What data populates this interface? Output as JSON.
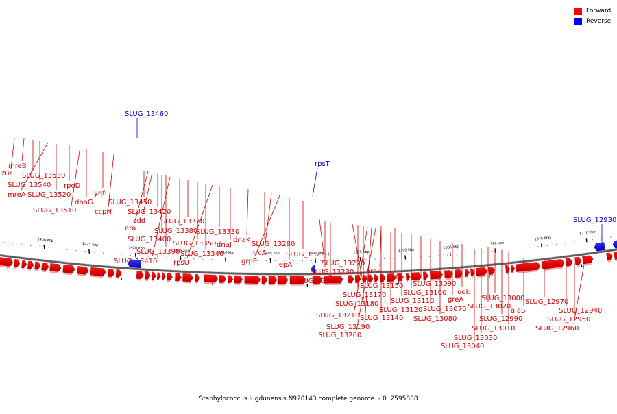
{
  "legend": {
    "forward": {
      "label": "Forward",
      "color": "#ff0000"
    },
    "reverse": {
      "label": "Reverse",
      "color": "#0000ff"
    }
  },
  "caption": "Staphylococcus lugdunensis N920143 complete genome. - 0..2595888",
  "ticks": [
    "1430 kbp",
    "1425 kbp",
    "1420 kbp",
    "1415 kbp",
    "1410 kbp",
    "1405 kbp",
    "1400 kbp",
    "1395 kbp",
    "1390 kbp",
    "1385 kbp",
    "1380 kbp",
    "1375 kbp",
    "1370 kbp"
  ],
  "forward_genes": [
    "zur",
    "mreB",
    "SLUG_13530",
    "SLUG_13540",
    "mreA",
    "SLUG_13520",
    "rpoD",
    "SLUG_13510",
    "dnaG",
    "yqfL",
    "ccpN",
    "SLUG_13450",
    "era",
    "cdd",
    "SLUG_13420",
    "SLUG_13400",
    "SLUG_13390",
    "SLUG_13410",
    "SLUG_13380",
    "SLUG_13370",
    "SLUG_13350",
    "SLUG_13340",
    "rpsU",
    "SLUG_13330",
    "dnaJ",
    "dnaK",
    "SLUG_13280",
    "hrcA",
    "grpE",
    "lepA",
    "SLUG_13250",
    "SLUG_13220",
    "SLUG_13230",
    "SLUG_13240",
    "aroE",
    "pfs",
    "SLUG_13150",
    "SLUG_13170",
    "SLUG_13180",
    "SLUG_13210",
    "SLUG_13190",
    "SLUG_13200",
    "SLUG_13140",
    "SLUG_13120",
    "SLUG_13110",
    "SLUG_13100",
    "SLUG_13090",
    "SLUG_13070",
    "SLUG_13080",
    "greA",
    "udk",
    "SLUG_13000",
    "SLUG_13020",
    "SLUG_13030",
    "SLUG_13040",
    "SLUG_12990",
    "SLUG_13010",
    "alaS",
    "SLUG_12970",
    "SLUG_12940",
    "SLUG_12950",
    "SLUG_12960"
  ],
  "reverse_genes": [
    "SLUG_13460",
    "rpsT",
    "SLUG_12930"
  ]
}
